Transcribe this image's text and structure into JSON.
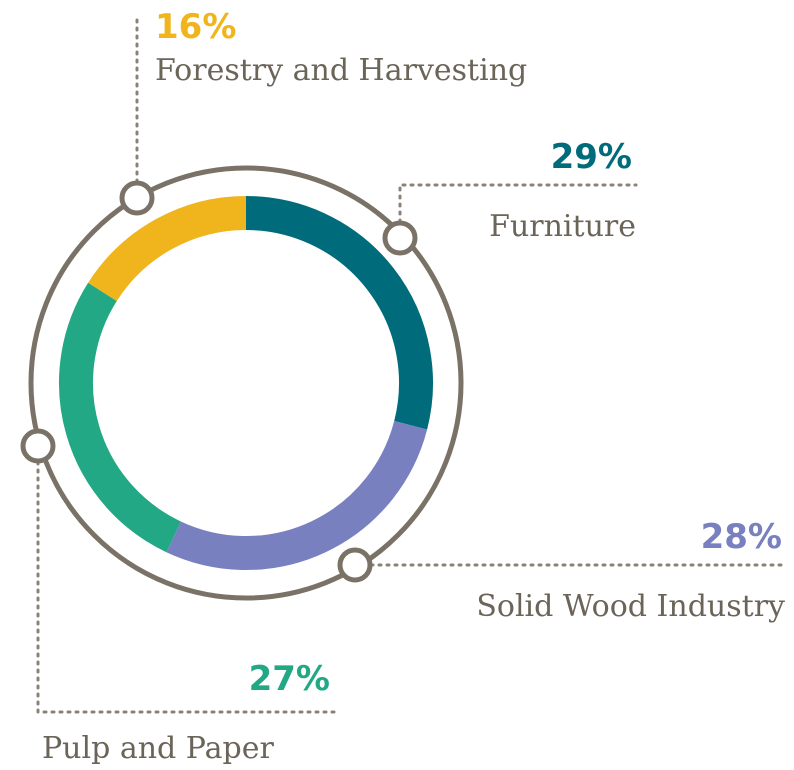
{
  "chart_data": {
    "type": "pie",
    "donut": true,
    "categories": [
      "Furniture",
      "Solid Wood Industry",
      "Pulp and Paper",
      "Forestry and Harvesting"
    ],
    "values": [
      29,
      28,
      27,
      16
    ],
    "value_labels": [
      "29%",
      "28%",
      "27%",
      "16%"
    ],
    "colors": [
      "#006b7a",
      "#7880bf",
      "#22a884",
      "#f0b41c"
    ]
  }
}
